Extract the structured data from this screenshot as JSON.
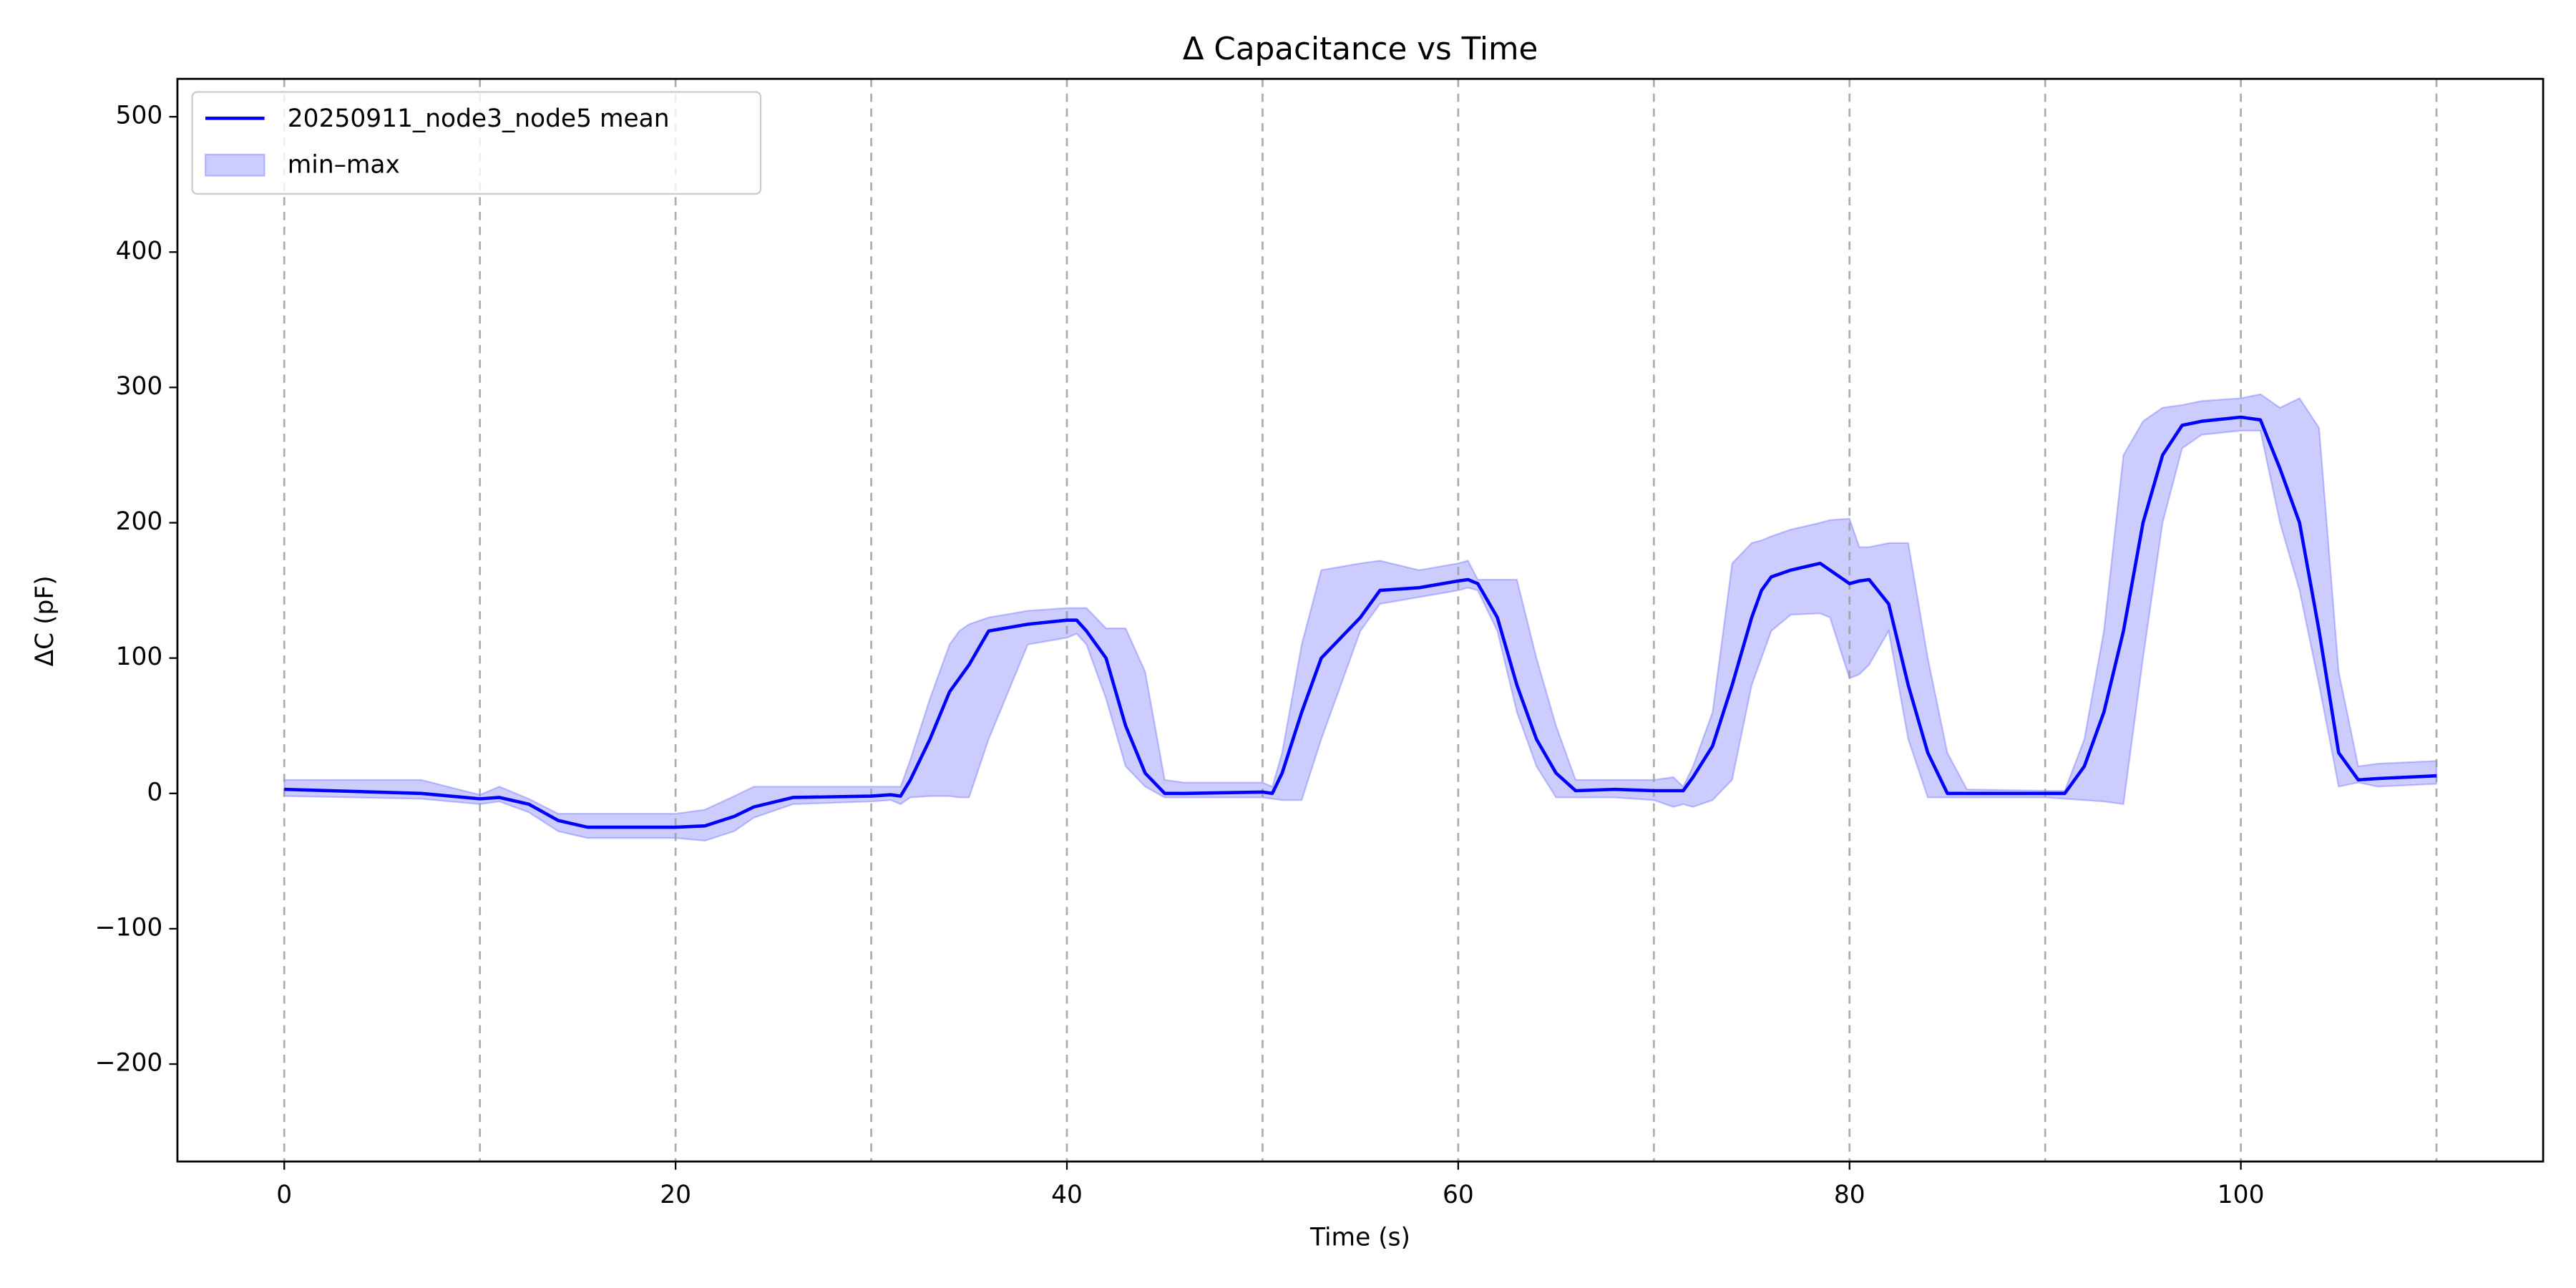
{
  "chart_data": {
    "type": "line",
    "title": "Δ Capacitance vs Time",
    "xlabel": "Time (s)",
    "ylabel": "ΔC (pF)",
    "x": [
      0,
      7,
      10,
      11,
      12.5,
      14,
      15.5,
      20,
      21.5,
      23,
      24,
      26,
      30,
      31,
      31.5,
      32,
      33,
      34,
      34.5,
      35,
      36,
      38,
      40,
      40.5,
      41,
      42,
      43,
      44,
      45,
      46,
      50,
      50.5,
      51,
      52,
      53,
      55,
      56,
      58,
      60,
      60.5,
      61,
      62,
      63,
      64,
      65,
      66,
      68,
      70,
      71,
      71.5,
      72,
      73,
      74,
      75,
      75.5,
      76,
      77,
      78.5,
      79,
      80,
      80.5,
      81,
      82,
      83,
      84,
      85,
      86,
      90,
      91,
      92,
      93,
      94,
      95,
      96,
      97,
      98,
      100,
      101,
      102,
      103,
      104,
      105,
      106,
      107,
      110
    ],
    "series": [
      {
        "name": "20250911_node3_node5 mean",
        "color": "#0000ff",
        "values": [
          3,
          0,
          -4,
          -3,
          -8,
          -20,
          -25,
          -25,
          -24,
          -17,
          -10,
          -3,
          -2,
          -1,
          -2,
          10,
          40,
          75,
          85,
          95,
          120,
          125,
          128,
          128,
          120,
          100,
          50,
          15,
          0,
          0,
          1,
          0,
          15,
          60,
          100,
          130,
          150,
          152,
          157,
          158,
          155,
          130,
          80,
          40,
          15,
          2,
          3,
          2,
          2,
          2,
          12,
          35,
          80,
          130,
          150,
          160,
          165,
          170,
          165,
          155,
          157,
          158,
          140,
          80,
          30,
          0,
          0,
          0,
          0,
          20,
          60,
          120,
          200,
          250,
          272,
          275,
          278,
          276,
          240,
          200,
          120,
          30,
          10,
          11,
          13
        ]
      }
    ],
    "band": {
      "name": "min–max",
      "color": "#0000ff",
      "lower": [
        -2,
        -4,
        -8,
        -6,
        -14,
        -28,
        -33,
        -33,
        -35,
        -28,
        -18,
        -8,
        -6,
        -5,
        -8,
        -3,
        -2,
        -2,
        -3,
        -3,
        40,
        110,
        115,
        118,
        110,
        70,
        20,
        5,
        -3,
        -3,
        -3,
        -4,
        -5,
        -5,
        40,
        120,
        140,
        145,
        150,
        152,
        150,
        120,
        60,
        20,
        -3,
        -3,
        -3,
        -5,
        -10,
        -8,
        -10,
        -5,
        10,
        80,
        100,
        120,
        132,
        133,
        130,
        85,
        88,
        95,
        120,
        40,
        -3,
        -3,
        -3,
        -3,
        -4,
        -5,
        -6,
        -8,
        100,
        200,
        255,
        265,
        268,
        268,
        200,
        150,
        80,
        5,
        8,
        5,
        7
      ],
      "upper": [
        10,
        10,
        -1,
        5,
        -4,
        -15,
        -15,
        -15,
        -12,
        -2,
        5,
        5,
        5,
        5,
        5,
        25,
        70,
        110,
        120,
        125,
        130,
        135,
        137,
        137,
        137,
        122,
        122,
        90,
        10,
        8,
        8,
        5,
        30,
        110,
        165,
        170,
        172,
        165,
        170,
        172,
        158,
        158,
        158,
        100,
        50,
        10,
        10,
        10,
        12,
        5,
        20,
        60,
        170,
        185,
        187,
        190,
        195,
        200,
        202,
        203,
        182,
        182,
        185,
        185,
        100,
        30,
        3,
        2,
        2,
        40,
        120,
        250,
        275,
        285,
        287,
        290,
        292,
        295,
        285,
        292,
        270,
        90,
        20,
        22,
        24
      ]
    },
    "vlines": [
      0,
      10,
      20,
      30,
      40,
      50,
      60,
      70,
      80,
      90,
      100,
      110
    ],
    "xlim": [
      -5.46,
      115.45
    ],
    "ylim": [
      -272,
      528
    ],
    "xticks": [
      0,
      20,
      40,
      60,
      80,
      100
    ],
    "yticks": [
      {
        "value": -200,
        "label": "−200"
      },
      {
        "value": -100,
        "label": "−100"
      },
      0,
      100,
      200,
      300,
      400,
      500
    ],
    "legend": "upper left"
  }
}
